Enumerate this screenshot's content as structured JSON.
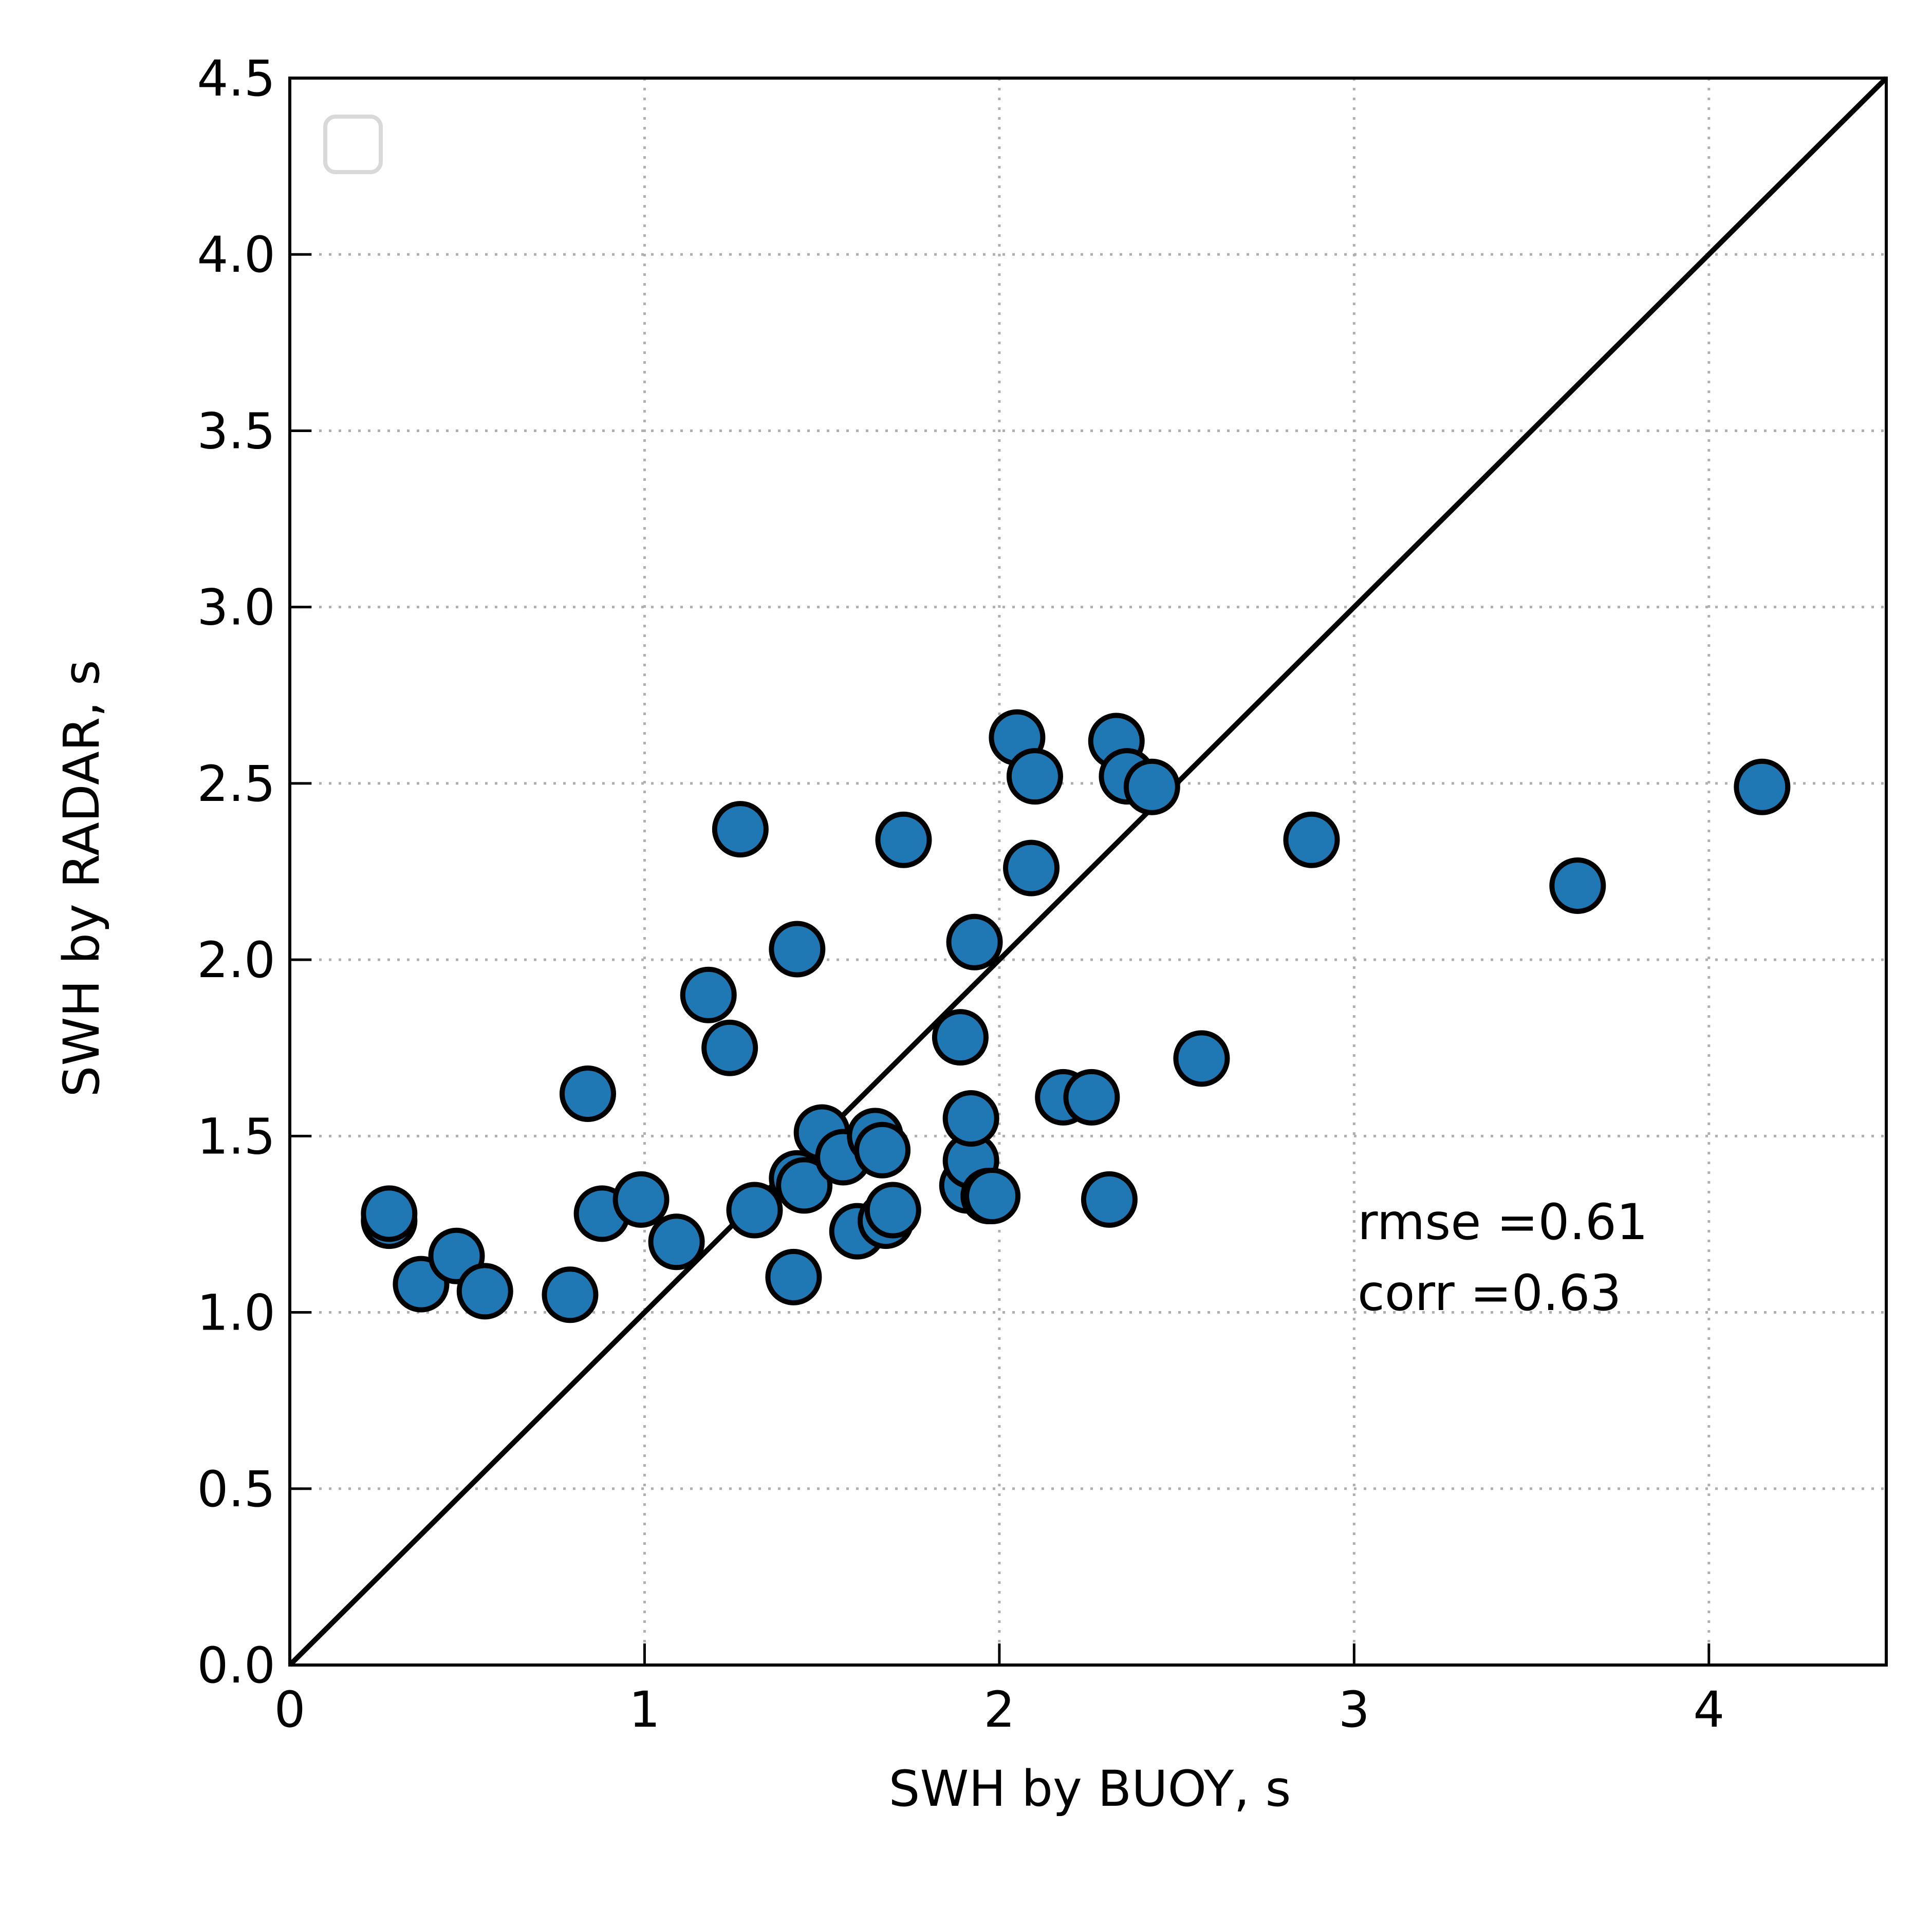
{
  "chart_data": {
    "type": "scatter",
    "xlabel": "SWH by BUOY, s",
    "ylabel": "SWH by RADAR, s",
    "xlim": [
      0,
      4.5
    ],
    "ylim": [
      0,
      4.5
    ],
    "x_ticks": [
      "0",
      "1",
      "2",
      "3",
      "4"
    ],
    "y_ticks": [
      "0.0",
      "0.5",
      "1.0",
      "1.5",
      "2.0",
      "2.5",
      "3.0",
      "3.5",
      "4.0",
      "4.5"
    ],
    "grid": true,
    "grid_style": "dotted",
    "legend": "empty box, top-left",
    "reference_line": {
      "type": "identity",
      "from": [
        0,
        0
      ],
      "to": [
        4.5,
        4.5
      ]
    },
    "annotations": [
      "rmse =0.61",
      "corr =0.63"
    ],
    "colors": {
      "marker_fill": "#1f77b4",
      "marker_edge": "#000000",
      "grid": "#b0b0b0"
    },
    "series": [
      {
        "x": [
          0.28,
          0.28,
          0.37,
          0.47,
          0.55,
          0.79,
          0.84,
          0.88,
          0.99,
          1.09,
          1.18,
          1.24,
          1.27,
          1.31,
          1.42,
          1.43,
          1.43,
          1.45,
          1.5,
          1.56,
          1.6,
          1.65,
          1.67,
          1.68,
          1.7,
          1.73,
          1.89,
          1.91,
          1.92,
          1.92,
          1.93,
          1.97,
          1.98,
          2.05,
          2.09,
          2.1,
          2.18,
          2.26,
          2.31,
          2.33,
          2.36,
          2.43,
          2.57,
          2.88,
          3.63,
          4.15
        ],
        "y": [
          1.26,
          1.28,
          1.08,
          1.16,
          1.06,
          1.05,
          1.62,
          1.28,
          1.32,
          1.2,
          1.9,
          1.75,
          2.37,
          1.29,
          1.1,
          2.03,
          1.38,
          1.36,
          1.51,
          1.44,
          1.23,
          1.5,
          1.46,
          1.26,
          1.29,
          2.34,
          1.78,
          1.36,
          1.43,
          1.55,
          2.05,
          1.33,
          1.33,
          2.63,
          2.26,
          2.52,
          1.61,
          1.61,
          1.32,
          2.62,
          2.52,
          2.49,
          1.72,
          2.34,
          2.21,
          2.49
        ]
      }
    ]
  }
}
